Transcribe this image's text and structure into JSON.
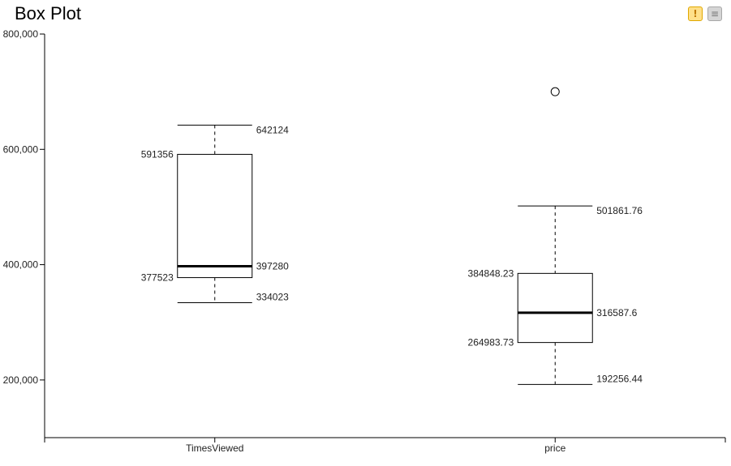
{
  "header": {
    "title": "Box Plot",
    "warning_icon": "warning-icon",
    "warning_glyph": "!",
    "menu_icon": "hamburger-menu-icon",
    "menu_glyph": "≡"
  },
  "chart_data": {
    "type": "box",
    "title": "Box Plot",
    "xlabel": "",
    "ylabel": "",
    "ylim": [
      100000,
      800000
    ],
    "y_ticks": [
      200000,
      400000,
      600000,
      800000
    ],
    "y_tick_labels": [
      "200,000",
      "400,000",
      "600,000",
      "800,000"
    ],
    "categories": [
      "TimesViewed",
      "price"
    ],
    "boxes": [
      {
        "category": "TimesViewed",
        "whisker_high": 642124,
        "q3": 591356,
        "median": 397280,
        "q1": 377523,
        "whisker_low": 334023,
        "labels": {
          "whisker_high": "642124",
          "q3": "591356",
          "median": "397280",
          "q1": "377523",
          "whisker_low": "334023"
        },
        "outliers": []
      },
      {
        "category": "price",
        "whisker_high": 501861.76,
        "q3": 384848.23,
        "median": 316587.6,
        "q1": 264983.73,
        "whisker_low": 192256.44,
        "labels": {
          "whisker_high": "501861.76",
          "q3": "384848.23",
          "median": "316587.6",
          "q1": "264983.73",
          "whisker_low": "192256.44"
        },
        "outliers": [
          700000
        ]
      }
    ],
    "grid": false,
    "legend": "none"
  }
}
